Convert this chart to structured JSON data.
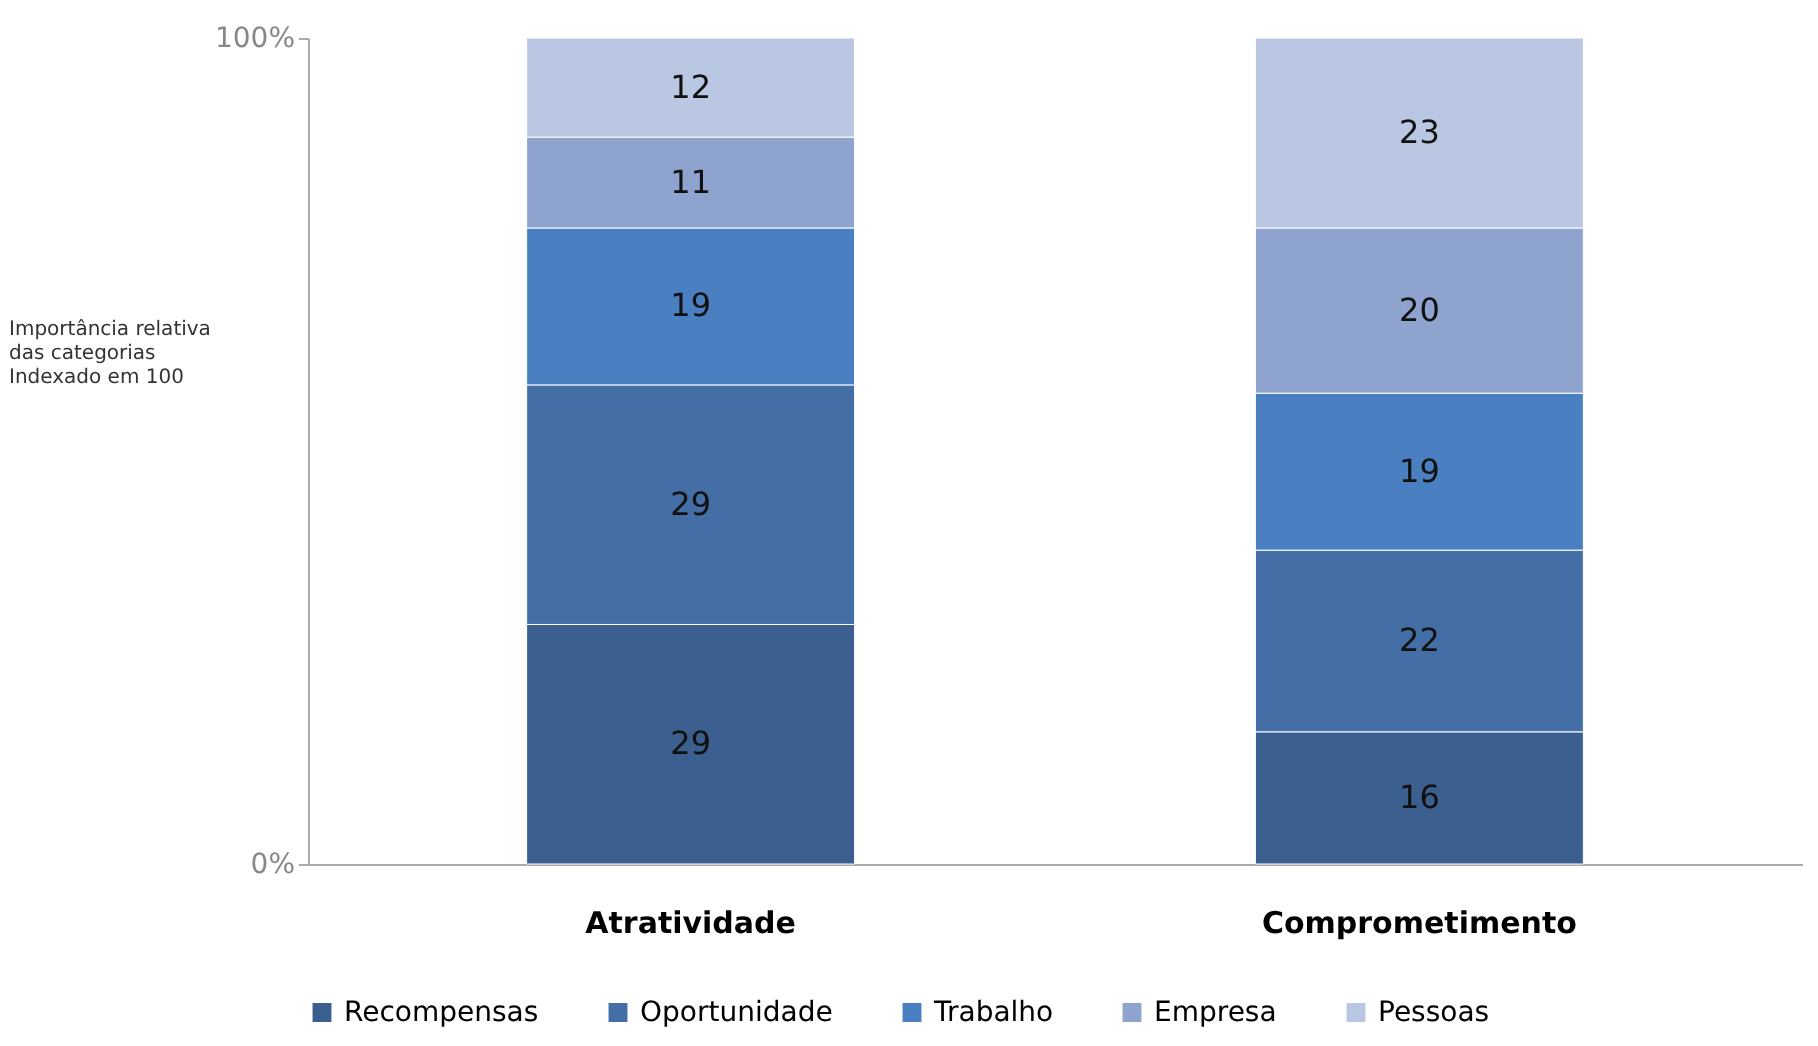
{
  "chart_data": {
    "type": "bar",
    "stacked": true,
    "ylabel": "Importância relativa das categorias Indexado em 100",
    "categories": [
      "Atratividade",
      "Comprometimento"
    ],
    "series": [
      {
        "name": "Recompensas",
        "color": "#3b5f8e",
        "values": [
          29,
          16
        ]
      },
      {
        "name": "Oportunidade",
        "color": "#436fa6",
        "values": [
          29,
          22
        ]
      },
      {
        "name": "Trabalho",
        "color": "#4a80c2",
        "values": [
          19,
          19
        ]
      },
      {
        "name": "Empresa",
        "color": "#8ea4cf",
        "values": [
          11,
          20
        ]
      },
      {
        "name": "Pessoas",
        "color": "#b9c7e2",
        "values": [
          12,
          23
        ]
      }
    ],
    "ylim": [
      0,
      100
    ],
    "yticks": [
      {
        "value": 0,
        "label": "0%"
      },
      {
        "value": 100,
        "label": "100%"
      }
    ],
    "data_labels": true,
    "grid": false,
    "legend": "bottom"
  }
}
